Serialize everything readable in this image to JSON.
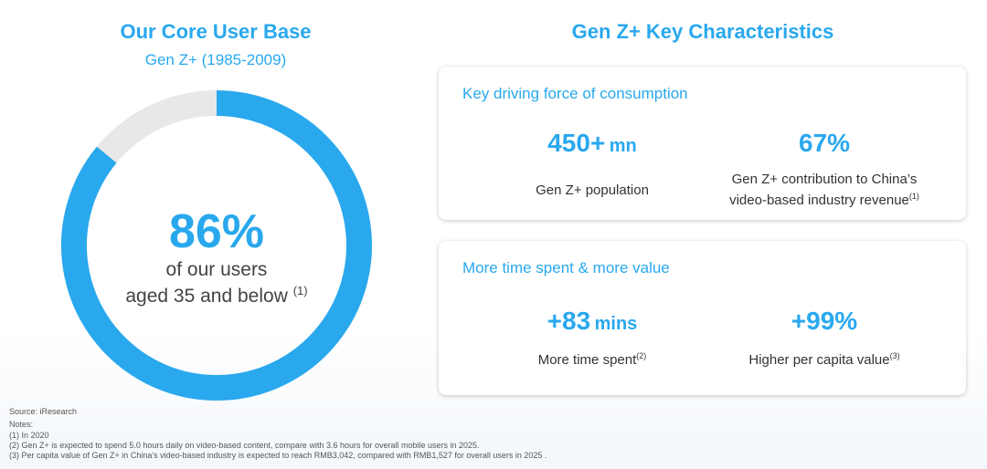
{
  "left": {
    "title": "Our Core User Base",
    "subtitle": "Gen Z+ (1985-2009)",
    "center_value": "86%",
    "center_line1": "of our users",
    "center_line2": "aged 35 and below",
    "center_note": "(1)"
  },
  "chart_data": {
    "type": "pie",
    "categories": [
      "Aged 35 and below",
      "Other"
    ],
    "values": [
      86,
      14
    ],
    "colors": [
      "#29a8ee",
      "#e8e8e8"
    ]
  },
  "right": {
    "title": "Gen Z+ Key Characteristics",
    "card1": {
      "title": "Key driving force of consumption",
      "m1_value": "450+",
      "m1_unit": "mn",
      "m1_label": "Gen Z+ population",
      "m2_value": "67%",
      "m2_label_line1": "Gen Z+ contribution to China’s",
      "m2_label_line2": "video-based industry revenue",
      "m2_note": "(1)"
    },
    "card2": {
      "title": "More time spent & more value",
      "m1_value": "+83",
      "m1_unit": "mins",
      "m1_label": "More time spent",
      "m1_note": "(2)",
      "m2_value": "+99%",
      "m2_label": "Higher per capita value",
      "m2_note": "(3)"
    }
  },
  "footer": {
    "source": "Source: iResearch",
    "notes_label": "Notes:",
    "note1": "(1)    In 2020",
    "note2": "(2)    Gen Z+ is expected to spend 5.0 hours daily on video-based content, compare with 3.6 hours for overall mobile users in 2025.",
    "note3": "(3)    Per capita value of Gen Z+ in China’s video-based industry is expected to reach RMB3,042, compared with RMB1,527 for overall users in 2025 ."
  }
}
